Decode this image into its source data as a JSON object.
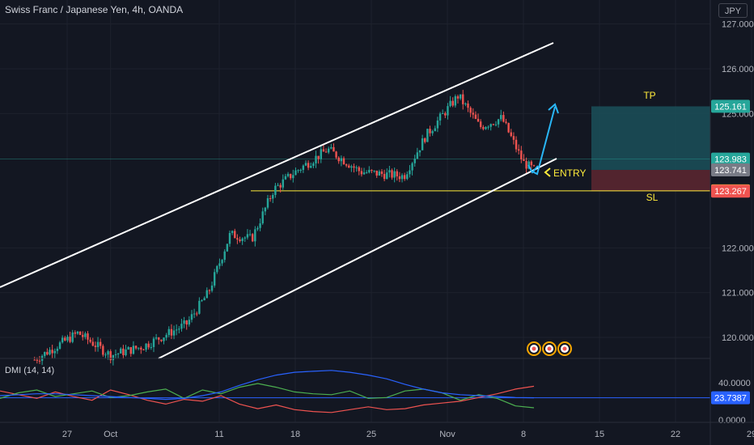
{
  "header": {
    "title": "Swiss Franc / Japanese Yen, 4h, OANDA",
    "currency": "JPY"
  },
  "indicator": {
    "label": "DMI (14, 14)"
  },
  "colors": {
    "bg": "#131722",
    "grid": "#1e222d",
    "up": "#26a69a",
    "down": "#ef5350",
    "channel": "#ffffff",
    "tp_zone": "#1b4d57",
    "sl_zone": "#5a2630",
    "tp_label": "#ffeb3b",
    "arrow": "#29b6f6",
    "plus_di": "#ef5350",
    "minus_di": "#4caf50",
    "adx": "#2962ff",
    "hline": "#ffeb3b"
  },
  "annotations": {
    "tp": "TP",
    "sl": "SL",
    "entry": "ENTRY"
  },
  "chart_data": {
    "type": "candlestick",
    "title": "Swiss Franc / Japanese Yen, 4h, OANDA",
    "price_axis": {
      "ylim": [
        119.5,
        127.2
      ],
      "ticks": [
        "127.000",
        "126.000",
        "125.000",
        "122.000",
        "121.000",
        "120.000"
      ]
    },
    "time_axis": {
      "ticks": [
        "27",
        "Oct",
        "11",
        "18",
        "25",
        "Nov",
        "8",
        "15",
        "22",
        "29"
      ]
    },
    "price_labels": [
      {
        "value": "125.161",
        "color": "#26a69a"
      },
      {
        "value": "123.983",
        "color": "#26a69a"
      },
      {
        "value": "123.741",
        "color": "#787b86"
      },
      {
        "value": "123.274",
        "color": "#ffeb3b"
      },
      {
        "value": "123.267",
        "color": "#ef5350"
      }
    ],
    "trade": {
      "tp": 125.161,
      "entry": 123.741,
      "sl": 123.267
    },
    "approx_path": [
      [
        "Sep 24",
        119.5
      ],
      [
        "Sep 28",
        120.1
      ],
      [
        "Oct 1",
        119.6
      ],
      [
        "Oct 4",
        119.8
      ],
      [
        "Oct 8",
        120.3
      ],
      [
        "Oct 10",
        121.0
      ],
      [
        "Oct 12",
        122.3
      ],
      [
        "Oct 14",
        122.2
      ],
      [
        "Oct 16",
        123.3
      ],
      [
        "Oct 18",
        123.7
      ],
      [
        "Oct 21",
        124.2
      ],
      [
        "Oct 24",
        123.7
      ],
      [
        "Oct 28",
        123.6
      ],
      [
        "Oct 30",
        124.5
      ],
      [
        "Nov 2",
        125.4
      ],
      [
        "Nov 4",
        124.7
      ],
      [
        "Nov 6",
        124.9
      ],
      [
        "Nov 8",
        123.9
      ],
      [
        "Nov 9",
        123.74
      ]
    ],
    "dmi": {
      "axis_ticks": [
        "40.0000",
        "0.0000"
      ],
      "current_label": "23.7387",
      "series": [
        {
          "values": [
            31,
            27,
            23,
            30,
            25,
            21,
            32,
            27,
            21,
            17,
            22,
            20,
            26,
            17,
            12,
            16,
            11,
            9,
            8,
            11,
            14,
            11,
            12,
            16,
            18,
            20,
            24,
            28,
            33,
            36
          ]
        },
        {
          "values": [
            23,
            29,
            32,
            25,
            28,
            31,
            24,
            26,
            30,
            33,
            23,
            32,
            28,
            35,
            39,
            35,
            30,
            28,
            27,
            31,
            23,
            24,
            31,
            33,
            29,
            21,
            27,
            23,
            15,
            13
          ]
        },
        {
          "values": [
            26,
            27,
            28,
            28,
            27,
            26,
            25,
            24,
            23,
            22,
            23,
            26,
            30,
            37,
            43,
            48,
            51,
            52,
            53,
            51,
            48,
            44,
            38,
            33,
            29,
            27,
            26,
            25,
            24,
            23.74
          ]
        }
      ],
      "horizontal_level": 23.7387
    }
  }
}
